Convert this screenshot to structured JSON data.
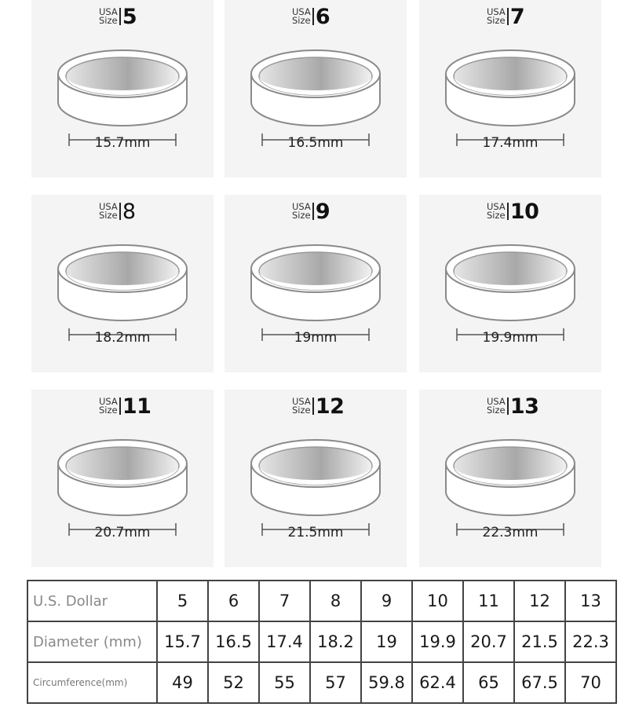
{
  "usa_label": [
    "USA",
    "Size"
  ],
  "rings": [
    {
      "size": "5",
      "diameter": "15.7mm"
    },
    {
      "size": "6",
      "diameter": "16.5mm"
    },
    {
      "size": "7",
      "diameter": "17.4mm"
    },
    {
      "size": "8",
      "diameter": "18.2mm"
    },
    {
      "size": "9",
      "diameter": "19mm"
    },
    {
      "size": "10",
      "diameter": "19.9mm"
    },
    {
      "size": "11",
      "diameter": "20.7mm"
    },
    {
      "size": "12",
      "diameter": "21.5mm"
    },
    {
      "size": "13",
      "diameter": "22.3mm"
    }
  ],
  "table": {
    "row_labels": [
      "U.S. Dollar",
      "Diameter (mm)",
      "Circumference(mm)"
    ],
    "sizes": [
      "5",
      "6",
      "7",
      "8",
      "9",
      "10",
      "11",
      "12",
      "13"
    ],
    "diameters": [
      "15.7",
      "16.5",
      "17.4",
      "18.2",
      "19",
      "19.9",
      "20.7",
      "21.5",
      "22.3"
    ],
    "circumferences": [
      "49",
      "52",
      "55",
      "57",
      "59.8",
      "62.4",
      "65",
      "67.5",
      "70"
    ]
  }
}
